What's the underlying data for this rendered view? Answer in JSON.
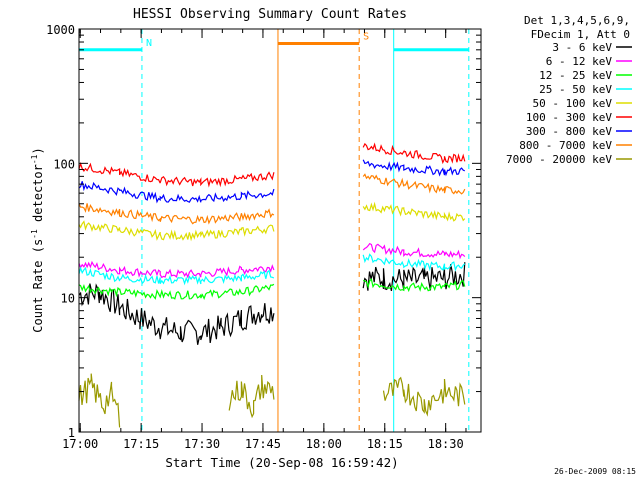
{
  "chart_data": {
    "type": "line",
    "title": "HESSI Observing Summary Count Rates",
    "xlabel": "Start Time (20-Sep-08 16:59:42)",
    "ylabel_main": "Count Rate (s",
    "ylabel_sup1": "-1",
    "ylabel_mid": " detector",
    "ylabel_sup2": "-1",
    "ylabel_end": ")",
    "yscale": "log",
    "ylim": [
      1,
      1000
    ],
    "xlim_minutes": [
      0,
      99
    ],
    "x_ticks": [
      "17:00",
      "17:15",
      "17:30",
      "17:45",
      "18:00",
      "18:15",
      "18:30"
    ],
    "y_ticks": [
      "1",
      "10",
      "100",
      "1000"
    ],
    "legend_title": [
      "Det 1,3,4,5,6,9,",
      "FDecim 1, Att 0"
    ],
    "legend_position": "right",
    "footer": "26-Dec-2009 08:15",
    "series": [
      {
        "name": "3 - 6 keV",
        "color": "#000000",
        "segments": [
          [
            [
              0,
              10.5
            ],
            [
              5,
              11
            ],
            [
              10,
              8.5
            ],
            [
              15,
              7
            ],
            [
              20,
              6
            ],
            [
              25,
              5.5
            ],
            [
              30,
              5.5
            ],
            [
              35,
              6
            ],
            [
              40,
              7
            ],
            [
              45,
              8
            ],
            [
              48,
              8
            ]
          ],
          [
            [
              70,
              14
            ],
            [
              75,
              14
            ],
            [
              80,
              13.5
            ],
            [
              85,
              13.5
            ],
            [
              90,
              14
            ],
            [
              95,
              15
            ]
          ]
        ]
      },
      {
        "name": "6 - 12 keV",
        "color": "#ff00ff",
        "segments": [
          [
            [
              0,
              18
            ],
            [
              10,
              16
            ],
            [
              20,
              15
            ],
            [
              30,
              15
            ],
            [
              40,
              16
            ],
            [
              48,
              17
            ]
          ],
          [
            [
              70,
              24
            ],
            [
              80,
              22
            ],
            [
              90,
              21
            ],
            [
              95,
              21
            ]
          ]
        ]
      },
      {
        "name": "12 - 25 keV",
        "color": "#00ff00",
        "segments": [
          [
            [
              0,
              12
            ],
            [
              10,
              11
            ],
            [
              20,
              10.5
            ],
            [
              30,
              10.5
            ],
            [
              40,
              11
            ],
            [
              48,
              12
            ]
          ],
          [
            [
              70,
              13
            ],
            [
              80,
              12
            ],
            [
              90,
              12
            ],
            [
              95,
              12.5
            ]
          ]
        ]
      },
      {
        "name": "25 - 50 keV",
        "color": "#00ffff",
        "segments": [
          [
            [
              0,
              16
            ],
            [
              10,
              14
            ],
            [
              20,
              13.5
            ],
            [
              30,
              13.5
            ],
            [
              40,
              14
            ],
            [
              48,
              15
            ]
          ],
          [
            [
              70,
              20
            ],
            [
              80,
              18
            ],
            [
              90,
              17
            ],
            [
              95,
              17.5
            ]
          ]
        ]
      },
      {
        "name": "50 - 100 keV",
        "color": "#dddd00",
        "segments": [
          [
            [
              0,
              35
            ],
            [
              10,
              32
            ],
            [
              20,
              29
            ],
            [
              30,
              29
            ],
            [
              40,
              31
            ],
            [
              48,
              33
            ]
          ],
          [
            [
              70,
              48
            ],
            [
              80,
              44
            ],
            [
              90,
              40
            ],
            [
              95,
              40
            ]
          ]
        ]
      },
      {
        "name": "100 - 300 keV",
        "color": "#ff0000",
        "segments": [
          [
            [
              0,
              95
            ],
            [
              10,
              85
            ],
            [
              20,
              75
            ],
            [
              30,
              72
            ],
            [
              40,
              76
            ],
            [
              48,
              82
            ]
          ],
          [
            [
              70,
              135
            ],
            [
              80,
              120
            ],
            [
              90,
              108
            ],
            [
              95,
              110
            ]
          ]
        ]
      },
      {
        "name": "300 - 800 keV",
        "color": "#0000ff",
        "segments": [
          [
            [
              0,
              70
            ],
            [
              10,
              62
            ],
            [
              20,
              55
            ],
            [
              30,
              54
            ],
            [
              40,
              57
            ],
            [
              48,
              60
            ]
          ],
          [
            [
              70,
              100
            ],
            [
              80,
              92
            ],
            [
              90,
              87
            ],
            [
              95,
              88
            ]
          ]
        ]
      },
      {
        "name": "800 - 7000 keV",
        "color": "#ff8000",
        "segments": [
          [
            [
              0,
              48
            ],
            [
              10,
              43
            ],
            [
              20,
              39
            ],
            [
              30,
              38
            ],
            [
              40,
              40
            ],
            [
              48,
              43
            ]
          ],
          [
            [
              70,
              80
            ],
            [
              80,
              70
            ],
            [
              90,
              63
            ],
            [
              95,
              63
            ]
          ]
        ]
      },
      {
        "name": "7000 - 20000 keV",
        "color": "#999900",
        "segments": [
          [
            [
              0,
              1.8
            ],
            [
              3,
              2.2
            ],
            [
              6,
              1.6
            ],
            [
              8,
              1.9
            ],
            [
              10,
              1.3
            ]
          ],
          [
            [
              37,
              1.8
            ],
            [
              40,
              2.1
            ],
            [
              43,
              1.5
            ],
            [
              45,
              2.2
            ],
            [
              48,
              2.0
            ]
          ],
          [
            [
              75,
              1.9
            ],
            [
              80,
              2.1
            ],
            [
              85,
              1.6
            ],
            [
              90,
              2.0
            ],
            [
              95,
              1.8
            ]
          ]
        ]
      }
    ],
    "annotations": [
      {
        "label": "N",
        "color": "#00ffff",
        "level": 700,
        "x_start": 0,
        "x_end": 15.5
      },
      {
        "label": "S",
        "color": "#ff8000",
        "level": 780,
        "x_start": 49,
        "x_end": 69
      },
      {
        "label": "",
        "color": "#00ffff",
        "level": 700,
        "x_start": 77.5,
        "x_end": 96
      }
    ],
    "vertical_markers": [
      {
        "x": 0,
        "color": "#00ffff",
        "style": "solid"
      },
      {
        "x": 15.5,
        "color": "#00ffff",
        "style": "dashed"
      },
      {
        "x": 49,
        "color": "#ff8000",
        "style": "solid"
      },
      {
        "x": 69,
        "color": "#ff8000",
        "style": "dashed"
      },
      {
        "x": 77.5,
        "color": "#00ffff",
        "style": "solid"
      },
      {
        "x": 96,
        "color": "#00ffff",
        "style": "dashed"
      }
    ]
  }
}
